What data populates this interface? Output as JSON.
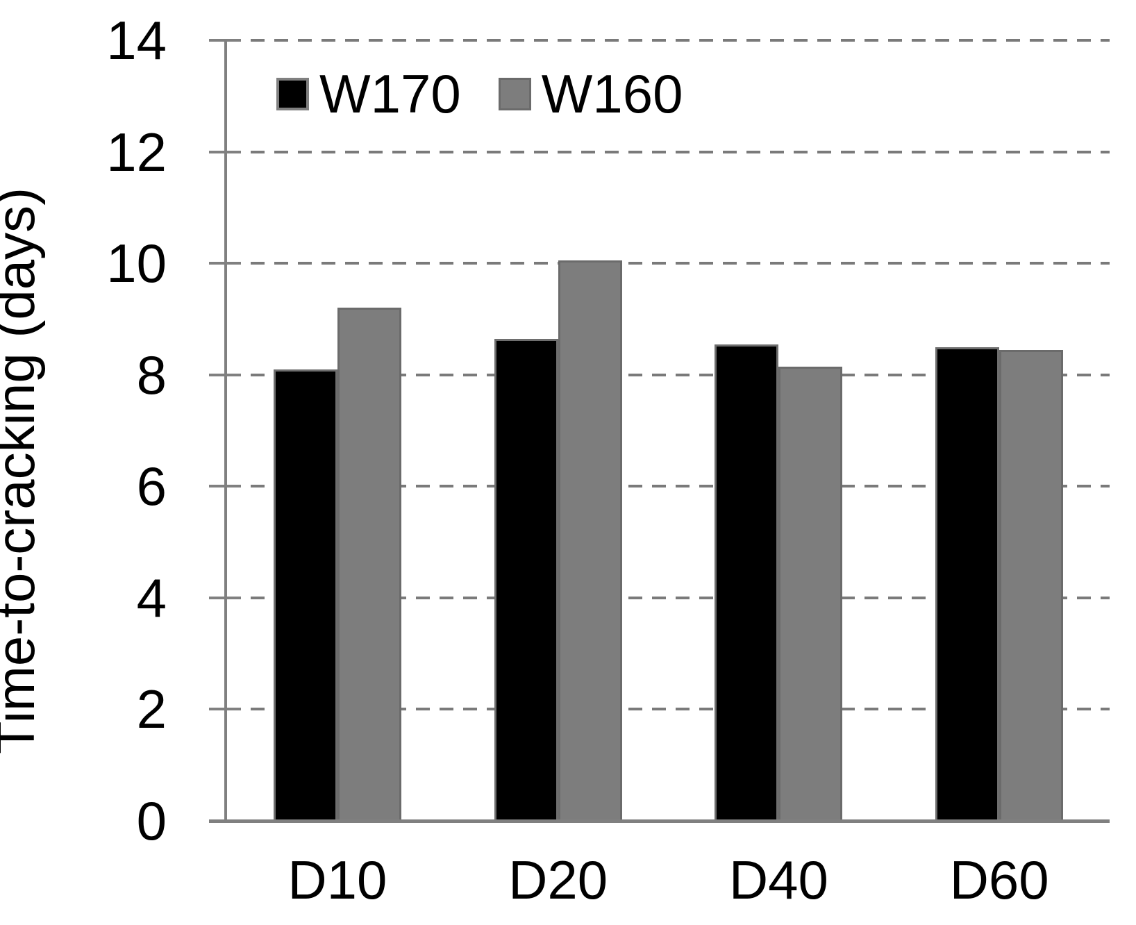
{
  "chart_data": {
    "type": "bar",
    "title": "",
    "ylabel": "Time-to-cracking (days)",
    "xlabel": "",
    "ylim": [
      0,
      14
    ],
    "ytick_step": 2,
    "ytick_labels": [
      "0",
      "2",
      "4",
      "6",
      "8",
      "10",
      "12",
      "14"
    ],
    "grid": "dashed-horizontal",
    "legend_position": "top-inside",
    "categories": [
      "D10",
      "D20",
      "D40",
      "D60"
    ],
    "series": [
      {
        "name": "W170",
        "color": "#000000",
        "border_color": "#6e6e6e",
        "values": [
          8.1,
          8.65,
          8.55,
          8.5
        ]
      },
      {
        "name": "W160",
        "color": "#7d7d7d",
        "border_color": "#6b6b6b",
        "values": [
          9.2,
          10.05,
          8.15,
          8.45
        ]
      }
    ],
    "axis_color": "#808080",
    "gridline_color": "#7a7a7a",
    "text_color": "#000000",
    "background_color": "#ffffff"
  }
}
